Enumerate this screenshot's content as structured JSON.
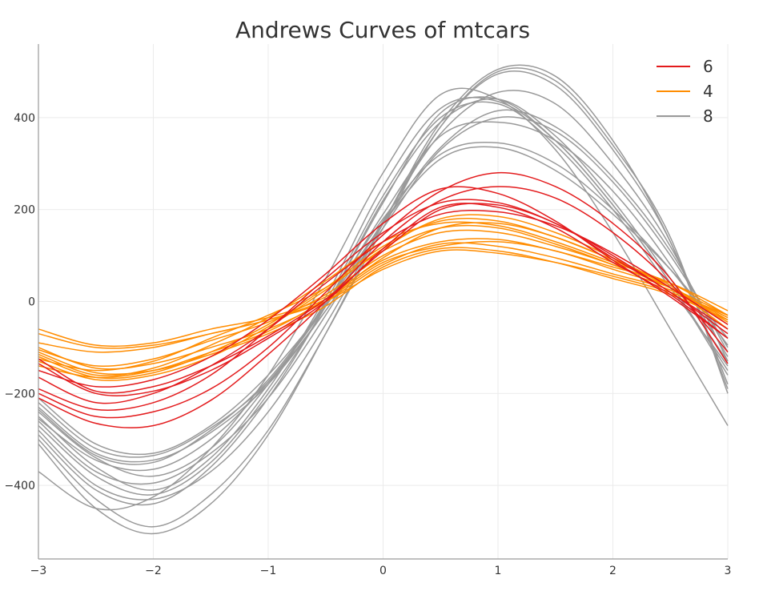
{
  "chart_data": {
    "type": "line",
    "title": "Andrews Curves of mtcars",
    "xlabel": "",
    "ylabel": "",
    "xlim": [
      -3,
      3
    ],
    "ylim": [
      -560,
      560
    ],
    "xticks": [
      -3,
      -2,
      -1,
      0,
      1,
      2,
      3
    ],
    "xtick_labels": [
      "−3",
      "−2",
      "−1",
      "0",
      "1",
      "2",
      "3"
    ],
    "yticks": [
      -400,
      -200,
      0,
      200,
      400
    ],
    "ytick_labels": [
      "−400",
      "−200",
      "0",
      "200",
      "400"
    ],
    "grid": true,
    "legend_position": "top-right",
    "legend": [
      {
        "label": "6",
        "color": "#e31a1c"
      },
      {
        "label": "4",
        "color": "#ff8c00"
      },
      {
        "label": "8",
        "color": "#999999"
      }
    ],
    "x": [
      -3,
      -2.5,
      -2,
      -1.5,
      -1,
      -0.5,
      0,
      0.5,
      1,
      1.5,
      2,
      2.5,
      3
    ],
    "series": [
      {
        "name": "6",
        "color": "#e31a1c",
        "values": [
          -125,
          -195,
          -185,
          -140,
          -75,
          5,
          110,
          200,
          210,
          170,
          95,
          20,
          -70
        ]
      },
      {
        "name": "6",
        "color": "#e31a1c",
        "values": [
          -135,
          -200,
          -195,
          -150,
          -80,
          0,
          115,
          205,
          205,
          160,
          85,
          15,
          -80
        ]
      },
      {
        "name": "6",
        "color": "#e31a1c",
        "values": [
          -150,
          -185,
          -170,
          -120,
          -40,
          60,
          170,
          245,
          235,
          175,
          90,
          10,
          -80
        ]
      },
      {
        "name": "6",
        "color": "#e31a1c",
        "values": [
          -190,
          -235,
          -220,
          -160,
          -60,
          50,
          150,
          215,
          215,
          170,
          100,
          20,
          -60
        ]
      },
      {
        "name": "6",
        "color": "#e31a1c",
        "values": [
          -200,
          -250,
          -240,
          -190,
          -100,
          20,
          145,
          240,
          280,
          250,
          170,
          50,
          -135
        ]
      },
      {
        "name": "6",
        "color": "#e31a1c",
        "values": [
          -210,
          -265,
          -270,
          -215,
          -115,
          0,
          130,
          220,
          250,
          225,
          150,
          40,
          -110
        ]
      },
      {
        "name": "6",
        "color": "#e31a1c",
        "values": [
          -165,
          -220,
          -200,
          -140,
          -60,
          40,
          130,
          190,
          195,
          165,
          105,
          30,
          -50
        ]
      },
      {
        "name": "4",
        "color": "#ff8c00",
        "values": [
          -60,
          -95,
          -90,
          -60,
          -35,
          10,
          90,
          130,
          135,
          110,
          75,
          40,
          -20
        ]
      },
      {
        "name": "4",
        "color": "#ff8c00",
        "values": [
          -70,
          -100,
          -95,
          -70,
          -40,
          5,
          85,
          120,
          130,
          110,
          70,
          30,
          -30
        ]
      },
      {
        "name": "4",
        "color": "#ff8c00",
        "values": [
          -90,
          -110,
          -100,
          -70,
          -40,
          0,
          70,
          110,
          105,
          85,
          55,
          20,
          -30
        ]
      },
      {
        "name": "4",
        "color": "#ff8c00",
        "values": [
          -100,
          -145,
          -135,
          -100,
          -60,
          0,
          80,
          125,
          120,
          95,
          60,
          25,
          -35
        ]
      },
      {
        "name": "4",
        "color": "#ff8c00",
        "values": [
          -110,
          -155,
          -150,
          -115,
          -70,
          -10,
          75,
          115,
          110,
          85,
          50,
          15,
          -40
        ]
      },
      {
        "name": "4",
        "color": "#ff8c00",
        "values": [
          -115,
          -160,
          -145,
          -95,
          -35,
          45,
          130,
          170,
          165,
          130,
          85,
          40,
          -30
        ]
      },
      {
        "name": "4",
        "color": "#ff8c00",
        "values": [
          -120,
          -165,
          -155,
          -110,
          -50,
          30,
          120,
          175,
          175,
          140,
          90,
          35,
          -50
        ]
      },
      {
        "name": "4",
        "color": "#ff8c00",
        "values": [
          -130,
          -170,
          -160,
          -120,
          -55,
          25,
          115,
          180,
          185,
          150,
          95,
          30,
          -60
        ]
      },
      {
        "name": "4",
        "color": "#ff8c00",
        "values": [
          -125,
          -150,
          -130,
          -80,
          -30,
          30,
          110,
          160,
          160,
          125,
          80,
          30,
          -40
        ]
      },
      {
        "name": "4",
        "color": "#ff8c00",
        "values": [
          -105,
          -140,
          -125,
          -85,
          -45,
          15,
          100,
          150,
          150,
          120,
          80,
          30,
          -45
        ]
      },
      {
        "name": "4",
        "color": "#ff8c00",
        "values": [
          -140,
          -165,
          -150,
          -110,
          -65,
          5,
          95,
          160,
          170,
          140,
          90,
          30,
          -60
        ]
      },
      {
        "name": "8",
        "color": "#999999",
        "values": [
          -220,
          -320,
          -335,
          -275,
          -175,
          -20,
          160,
          330,
          400,
          370,
          260,
          100,
          -100
        ]
      },
      {
        "name": "8",
        "color": "#999999",
        "values": [
          -230,
          -330,
          -345,
          -285,
          -180,
          -20,
          170,
          335,
          415,
          380,
          270,
          110,
          -110
        ]
      },
      {
        "name": "8",
        "color": "#999999",
        "values": [
          -260,
          -370,
          -395,
          -330,
          -210,
          -30,
          175,
          365,
          455,
          430,
          300,
          120,
          -130
        ]
      },
      {
        "name": "8",
        "color": "#999999",
        "values": [
          -280,
          -400,
          -430,
          -370,
          -240,
          -50,
          170,
          380,
          495,
          470,
          330,
          130,
          -180
        ]
      },
      {
        "name": "8",
        "color": "#999999",
        "values": [
          -300,
          -430,
          -490,
          -420,
          -280,
          -70,
          160,
          380,
          500,
          480,
          340,
          140,
          -200
        ]
      },
      {
        "name": "8",
        "color": "#999999",
        "values": [
          -310,
          -450,
          -505,
          -440,
          -290,
          -70,
          170,
          390,
          505,
          490,
          350,
          130,
          -190
        ]
      },
      {
        "name": "8",
        "color": "#999999",
        "values": [
          -370,
          -450,
          -425,
          -320,
          -160,
          50,
          280,
          450,
          440,
          330,
          150,
          -60,
          -270
        ]
      },
      {
        "name": "8",
        "color": "#999999",
        "values": [
          -250,
          -360,
          -410,
          -340,
          -190,
          10,
          250,
          420,
          435,
          350,
          210,
          40,
          -150
        ]
      },
      {
        "name": "8",
        "color": "#999999",
        "values": [
          -240,
          -340,
          -380,
          -320,
          -180,
          0,
          230,
          400,
          430,
          340,
          200,
          30,
          -140
        ]
      },
      {
        "name": "8",
        "color": "#999999",
        "values": [
          -270,
          -380,
          -420,
          -350,
          -200,
          -10,
          220,
          390,
          440,
          360,
          220,
          50,
          -130
        ]
      },
      {
        "name": "8",
        "color": "#999999",
        "values": [
          -290,
          -410,
          -440,
          -360,
          -210,
          -10,
          215,
          410,
          440,
          350,
          210,
          40,
          -160
        ]
      },
      {
        "name": "8",
        "color": "#999999",
        "values": [
          -210,
          -310,
          -330,
          -270,
          -160,
          -10,
          170,
          310,
          335,
          285,
          190,
          70,
          -80
        ]
      },
      {
        "name": "8",
        "color": "#999999",
        "values": [
          -235,
          -335,
          -350,
          -280,
          -170,
          -5,
          180,
          320,
          345,
          300,
          200,
          70,
          -95
        ]
      },
      {
        "name": "8",
        "color": "#999999",
        "values": [
          -255,
          -345,
          -365,
          -300,
          -175,
          -10,
          190,
          360,
          390,
          350,
          240,
          80,
          -120
        ]
      }
    ]
  }
}
